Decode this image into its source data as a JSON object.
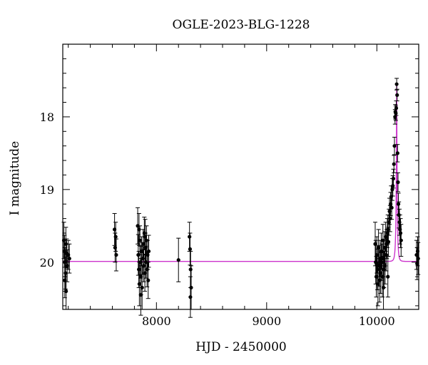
{
  "chart_data": {
    "type": "scatter",
    "title": "OGLE-2023-BLG-1228",
    "xlabel": "HJD - 2450000",
    "ylabel": "I magnitude",
    "xlim": [
      7150,
      10380
    ],
    "ylim": [
      20.65,
      17.0
    ],
    "y_inverted": true,
    "grid": false,
    "x_ticks": [
      8000,
      9000,
      10000
    ],
    "y_ticks": [
      18,
      19,
      20
    ],
    "x_tick_labels": [
      "8000",
      "9000",
      "10000"
    ],
    "y_tick_labels": [
      "18",
      "19",
      "20"
    ],
    "colors": {
      "points": "#000000",
      "model": "#cc33cc",
      "frame": "#000000"
    },
    "model": {
      "name": "",
      "baseline_mag": 19.99,
      "peak_time": 10180,
      "peak_mag": 17.55,
      "tE": 12,
      "u0": 0.09
    },
    "series": [
      {
        "name": "",
        "points": [
          [
            7160,
            19.7,
            0.25
          ],
          [
            7165,
            19.85,
            0.22
          ],
          [
            7170,
            20.0,
            0.2
          ],
          [
            7175,
            20.15,
            0.22
          ],
          [
            7180,
            20.4,
            0.25
          ],
          [
            7185,
            19.88,
            0.2
          ],
          [
            7190,
            20.05,
            0.22
          ],
          [
            7200,
            19.9,
            0.2
          ],
          [
            7210,
            19.95,
            0.2
          ],
          [
            7168,
            20.25,
            0.24
          ],
          [
            7178,
            19.75,
            0.23
          ],
          [
            7620,
            19.55,
            0.22
          ],
          [
            7625,
            19.8,
            0.2
          ],
          [
            7630,
            19.65,
            0.2
          ],
          [
            7635,
            19.9,
            0.22
          ],
          [
            7830,
            19.5,
            0.25
          ],
          [
            7835,
            19.9,
            0.28
          ],
          [
            7840,
            20.1,
            0.25
          ],
          [
            7845,
            20.3,
            0.3
          ],
          [
            7850,
            19.7,
            0.2
          ],
          [
            7855,
            20.0,
            0.22
          ],
          [
            7860,
            20.2,
            0.25
          ],
          [
            7865,
            19.85,
            0.2
          ],
          [
            7870,
            20.35,
            0.3
          ],
          [
            7875,
            19.95,
            0.22
          ],
          [
            7880,
            19.75,
            0.2
          ],
          [
            7885,
            20.05,
            0.22
          ],
          [
            7890,
            19.6,
            0.22
          ],
          [
            7895,
            20.15,
            0.25
          ],
          [
            7900,
            19.8,
            0.2
          ],
          [
            7905,
            20.0,
            0.22
          ],
          [
            7910,
            19.7,
            0.2
          ],
          [
            7915,
            20.1,
            0.24
          ],
          [
            7920,
            19.9,
            0.2
          ],
          [
            7925,
            20.25,
            0.25
          ],
          [
            7930,
            19.85,
            0.22
          ],
          [
            7842,
            19.55,
            0.22
          ],
          [
            7858,
            20.45,
            0.28
          ],
          [
            7898,
            19.65,
            0.24
          ],
          [
            8200,
            19.97,
            0.3
          ],
          [
            8300,
            19.65,
            0.2
          ],
          [
            8305,
            19.82,
            0.22
          ],
          [
            8310,
            20.1,
            0.25
          ],
          [
            8315,
            20.35,
            0.3
          ],
          [
            8308,
            20.48,
            0.28
          ],
          [
            9985,
            19.75,
            0.3
          ],
          [
            9990,
            20.0,
            0.3
          ],
          [
            9995,
            20.2,
            0.28
          ],
          [
            10000,
            19.9,
            0.25
          ],
          [
            10005,
            20.1,
            0.28
          ],
          [
            10010,
            20.3,
            0.3
          ],
          [
            10015,
            19.8,
            0.25
          ],
          [
            10020,
            20.05,
            0.28
          ],
          [
            10025,
            20.25,
            0.3
          ],
          [
            10030,
            19.95,
            0.25
          ],
          [
            10035,
            20.15,
            0.28
          ],
          [
            10040,
            19.85,
            0.25
          ],
          [
            10045,
            20.0,
            0.25
          ],
          [
            10050,
            20.2,
            0.28
          ],
          [
            10055,
            19.7,
            0.22
          ],
          [
            10060,
            19.95,
            0.25
          ],
          [
            10065,
            20.1,
            0.25
          ],
          [
            10070,
            19.8,
            0.22
          ],
          [
            10075,
            20.05,
            0.25
          ],
          [
            10080,
            19.65,
            0.2
          ],
          [
            10085,
            19.9,
            0.22
          ],
          [
            10090,
            19.75,
            0.2
          ],
          [
            10095,
            19.6,
            0.2
          ],
          [
            10100,
            19.55,
            0.2
          ],
          [
            10105,
            19.72,
            0.2
          ],
          [
            10110,
            19.45,
            0.18
          ],
          [
            10115,
            19.3,
            0.18
          ],
          [
            10120,
            19.4,
            0.18
          ],
          [
            10125,
            19.2,
            0.16
          ],
          [
            10130,
            19.1,
            0.15
          ],
          [
            10135,
            19.25,
            0.16
          ],
          [
            10140,
            19.0,
            0.15
          ],
          [
            10145,
            18.95,
            0.14
          ],
          [
            10150,
            18.85,
            0.13
          ],
          [
            10155,
            18.65,
            0.12
          ],
          [
            10160,
            18.4,
            0.12
          ],
          [
            10165,
            18.0,
            0.1
          ],
          [
            10168,
            17.93,
            0.1
          ],
          [
            10172,
            17.95,
            0.1
          ],
          [
            10176,
            17.88,
            0.1
          ],
          [
            10180,
            17.55,
            0.08
          ],
          [
            10184,
            17.7,
            0.08
          ],
          [
            10188,
            18.5,
            0.12
          ],
          [
            10192,
            18.9,
            0.13
          ],
          [
            10196,
            19.2,
            0.15
          ],
          [
            10200,
            19.35,
            0.18
          ],
          [
            10205,
            19.45,
            0.18
          ],
          [
            10210,
            19.55,
            0.2
          ],
          [
            10215,
            19.6,
            0.2
          ],
          [
            10220,
            19.7,
            0.22
          ],
          [
            10060,
            20.35,
            0.3
          ],
          [
            10100,
            20.2,
            0.28
          ],
          [
            10360,
            19.9,
            0.2
          ],
          [
            10365,
            20.02,
            0.22
          ],
          [
            10370,
            19.85,
            0.2
          ],
          [
            10375,
            19.95,
            0.22
          ]
        ]
      }
    ]
  }
}
